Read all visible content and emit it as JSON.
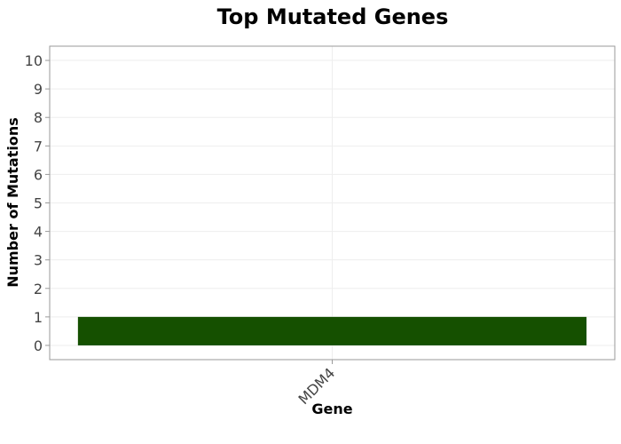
{
  "chart_data": {
    "type": "bar",
    "title": "Top Mutated Genes",
    "xlabel": "Gene",
    "ylabel": "Number of Mutations",
    "categories": [
      "MDM4"
    ],
    "values": [
      1
    ],
    "ylim": [
      -0.5,
      10.5
    ],
    "yticks": [
      0,
      1,
      2,
      3,
      4,
      5,
      6,
      7,
      8,
      9,
      10
    ],
    "grid": true,
    "legend": "none",
    "bar_color": "#155000",
    "x_tick_rotation_deg": -45
  }
}
